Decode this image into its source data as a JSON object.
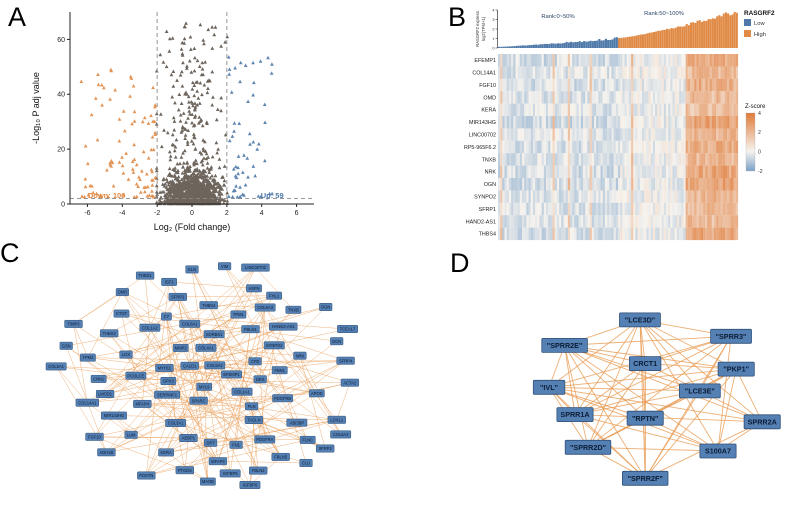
{
  "panel_labels": {
    "A": "A",
    "B": "B",
    "C": "C",
    "D": "D"
  },
  "colors": {
    "down_orange": "#E08A45",
    "up_blue": "#4E79A9",
    "nonsig_dark": "#4D4238",
    "edge_orange": "#E89B53",
    "node_blue": "#5580B4"
  },
  "chart_data": [
    {
      "panel": "A",
      "type": "scatter",
      "subtype": "volcano",
      "xlabel": "Log₂ (Fold change)",
      "ylabel": "-Log₁₀ P adj value",
      "xlim": [
        -7,
        7
      ],
      "ylim": [
        0,
        70
      ],
      "xticks": [
        -6,
        -4,
        -2,
        0,
        2,
        4,
        6
      ],
      "yticks": [
        0,
        20,
        40,
        60
      ],
      "thresholds": {
        "x": [
          -2,
          2
        ],
        "y": 2
      },
      "marker": "triangle",
      "seed": 7,
      "groups": [
        {
          "name": "down",
          "label": "Down: 100",
          "count": 100,
          "color": "#E08A45"
        },
        {
          "name": "not-significant",
          "count": 1400,
          "color": "#4D4238"
        },
        {
          "name": "up",
          "label": "Up: 59",
          "count": 59,
          "color": "#4E79A9"
        }
      ]
    },
    {
      "panel": "B",
      "type": "bar",
      "ylabel_lines": [
        "RASGRF2 express",
        "log2(TPM+1)"
      ],
      "yticks": [
        0,
        1,
        2,
        3,
        4
      ],
      "ylim": [
        0,
        4
      ],
      "n_samples": 110,
      "seed": 13,
      "bar_colors": {
        "low": "#4E79A9",
        "high": "#E08A45"
      },
      "group_labels": [
        {
          "text": "Rank:0~50%",
          "color": "#1F3B5C"
        },
        {
          "text": "Rank:50~100%",
          "color": "#1F3B5C"
        }
      ],
      "legend": {
        "title": "RASGRF2",
        "items": [
          {
            "label": "Low",
            "color": "#4E79A9"
          },
          {
            "label": "High",
            "color": "#E08A45"
          }
        ]
      }
    },
    {
      "panel": "B",
      "type": "heatmap",
      "n_columns": 110,
      "seed": 17,
      "rows": [
        "EFEMP1",
        "COL14A1",
        "FGF10",
        "OMD",
        "KERA",
        "MIR143HG",
        "LINC00702",
        "RP5-965F6.2",
        "TNXB",
        "NRK",
        "OGN",
        "SYNPO2",
        "SFRP1",
        "HAND2-AS1",
        "THBS4"
      ],
      "colorbar": {
        "title": "Z-score",
        "ticks": [
          4,
          2,
          0,
          -2
        ],
        "range": [
          -2,
          4
        ],
        "high_color": "#E07B39",
        "mid_color": "#F6F3EE",
        "low_color": "#7BA2C9"
      }
    },
    {
      "panel": "C",
      "type": "network",
      "node_fill": "#5580B4",
      "node_border": "#2F5179",
      "edge_color": "#E89B53",
      "label_color": "#0B1B33",
      "seed": 23,
      "nodes": [
        "COL1A1",
        "COL1A2",
        "COL3A1",
        "COL5A1",
        "COL5A2",
        "COL6A1",
        "COL6A2",
        "COL6A3",
        "COL4A1",
        "COL14A1",
        "FBN1",
        "FBLN1",
        "FBLN2",
        "FBLN5",
        "LUM",
        "DCN",
        "OGN",
        "OMD",
        "KERA",
        "ASPN",
        "POSTN",
        "FN1",
        "THBS1",
        "THBS2",
        "THBS4",
        "SPARC",
        "MMP2",
        "TIMP3",
        "LOX",
        "LOXL1",
        "ELN",
        "MFAP4",
        "MFAP5",
        "EFEMP1",
        "SFRP1",
        "SFRP2",
        "SFRP4",
        "CTGF",
        "IGF1",
        "IGFBP5",
        "IGFBP6",
        "PDGFRA",
        "PDGFRB",
        "ACTA2",
        "TAGLN",
        "MYH11",
        "CNN1",
        "DES",
        "SYNPO2",
        "LMOD1",
        "PLN",
        "SORBS1",
        "FLNC",
        "TPM1",
        "TPM2",
        "MYL9",
        "CALD1",
        "TNXB",
        "FGF10",
        "NRK",
        "HAND2-AS1",
        "LINC00702",
        "MIR143HG",
        "ABI3BP",
        "DPT",
        "GSN",
        "VIM",
        "AEBP1",
        "PCOLCE",
        "SERPINF1",
        "CLU",
        "APOD",
        "PTGDS",
        "C7",
        "CFD",
        "ADH1B",
        "FHL1",
        "TCEAL7",
        "MAOB",
        "GPX3"
      ]
    },
    {
      "panel": "D",
      "type": "network",
      "node_fill": "#5580B4",
      "node_border": "#2F5179",
      "edge_color": "#E89B53",
      "label_color": "#0B1B33",
      "seed": 29,
      "edge_probability": 0.8,
      "nodes": [
        {
          "label": "\"LCE3D\"",
          "x": 0.45,
          "y": 0.06
        },
        {
          "label": "\"SPRR3\"",
          "x": 0.8,
          "y": 0.15
        },
        {
          "label": "\"SPRR2E\"",
          "x": 0.16,
          "y": 0.2
        },
        {
          "label": "CRCT1",
          "x": 0.47,
          "y": 0.3
        },
        {
          "label": "\"PKP1\"",
          "x": 0.82,
          "y": 0.33
        },
        {
          "label": "\"IVL\"",
          "x": 0.1,
          "y": 0.43
        },
        {
          "label": "\"LCE3E\"",
          "x": 0.68,
          "y": 0.45
        },
        {
          "label": "SPRR1A",
          "x": 0.2,
          "y": 0.58
        },
        {
          "label": "\"RPTN\"",
          "x": 0.47,
          "y": 0.6
        },
        {
          "label": "SPRR2A",
          "x": 0.92,
          "y": 0.62
        },
        {
          "label": "\"SPRR2D\"",
          "x": 0.25,
          "y": 0.76
        },
        {
          "label": "S100A7",
          "x": 0.75,
          "y": 0.78
        },
        {
          "label": "\"SPRR2F\"",
          "x": 0.47,
          "y": 0.93
        }
      ]
    }
  ]
}
